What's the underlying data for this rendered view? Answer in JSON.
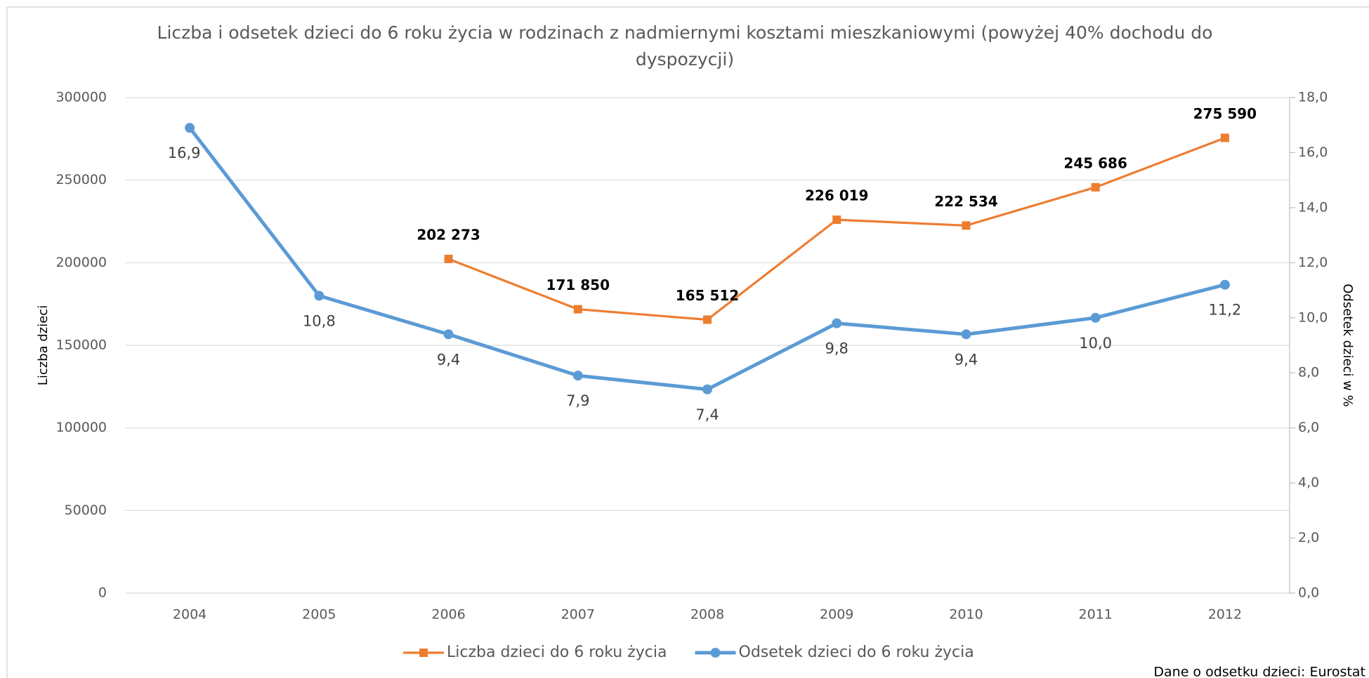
{
  "chart_data": {
    "type": "line",
    "title": "Liczba i odsetek dzieci do 6 roku życia w rodzinach z nadmiernymi kosztami mieszkaniowymi (powyżej 40% dochodu do dyspozycji)",
    "ylabel": "Liczba dzieci",
    "y2label": "Odsetek dzieci w %",
    "annotation": "Dane o odsetku dzieci: Eurostat",
    "categories": [
      "2004",
      "2005",
      "2006",
      "2007",
      "2008",
      "2009",
      "2010",
      "2011",
      "2012"
    ],
    "series": [
      {
        "name": "Liczba dzieci do 6 roku życia",
        "color": "#ed7d31",
        "marker": "square",
        "values": [
          null,
          null,
          202273,
          171850,
          165512,
          226019,
          222534,
          245686,
          275590
        ],
        "value_labels": [
          null,
          null,
          "202 273",
          "171 850",
          "165 512",
          "226 019",
          "222 534",
          "245 686",
          "275 590"
        ]
      },
      {
        "name": "Odsetek dzieci do 6 roku życia",
        "color": "#5b9bd5",
        "marker": "circle",
        "axis": "y2",
        "values": [
          16.9,
          10.8,
          9.4,
          7.9,
          7.4,
          9.8,
          9.4,
          10.0,
          11.2
        ],
        "value_labels": [
          "16,9",
          "10,8",
          "9,4",
          "7,9",
          "7,4",
          "9,8",
          "9,4",
          "10,0",
          "11,2"
        ]
      }
    ],
    "ylim": [
      0,
      300000
    ],
    "yticks": [
      0,
      50000,
      100000,
      150000,
      200000,
      250000,
      300000
    ],
    "y2lim": [
      0,
      18
    ],
    "y2ticks": [
      {
        "value": 0,
        "label": "0,0"
      },
      {
        "value": 2,
        "label": "2,0"
      },
      {
        "value": 4,
        "label": "4,0"
      },
      {
        "value": 6,
        "label": "6,0"
      },
      {
        "value": 8,
        "label": "8,0"
      },
      {
        "value": 10,
        "label": "10,0"
      },
      {
        "value": 12,
        "label": "12,0"
      },
      {
        "value": 14,
        "label": "14,0"
      },
      {
        "value": 16,
        "label": "16,0"
      },
      {
        "value": 18,
        "label": "18,0"
      }
    ],
    "grid": true,
    "legend": "bottom"
  }
}
